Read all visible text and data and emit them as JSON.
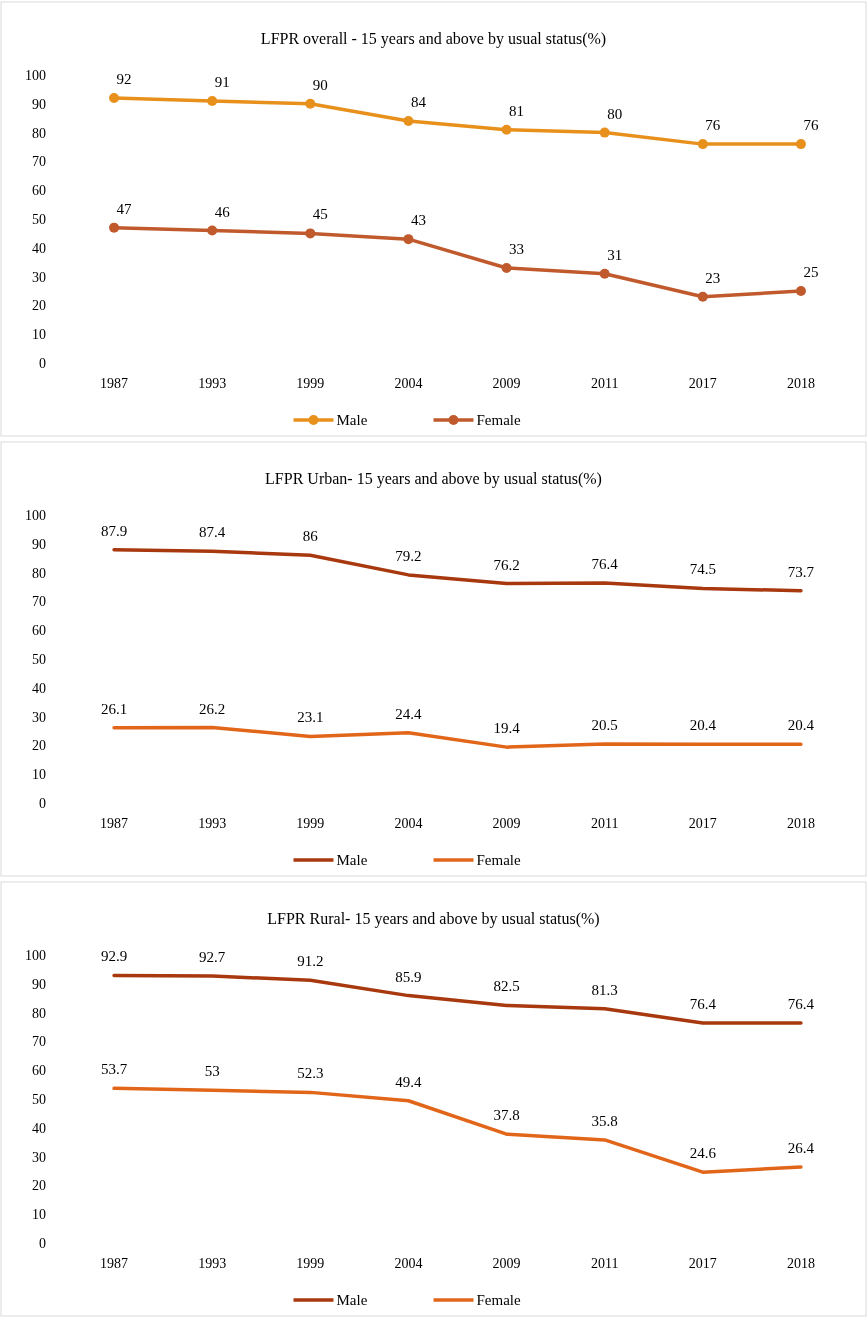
{
  "chart_data": [
    {
      "type": "line",
      "title": "LFPR overall - 15 years and above by usual status(%)",
      "categories": [
        "1987",
        "1993",
        "1999",
        "2004",
        "2009",
        "2011",
        "2017",
        "2018"
      ],
      "ylim": [
        0,
        100
      ],
      "yticks": [
        0,
        10,
        20,
        30,
        40,
        50,
        60,
        70,
        80,
        90,
        100
      ],
      "grid": false,
      "legend": "bottom",
      "marker": "circle",
      "data_labels": true,
      "series": [
        {
          "name": "Male",
          "color": "#e8901c",
          "values": [
            92,
            91,
            90,
            84,
            81,
            80,
            76,
            76
          ]
        },
        {
          "name": "Female",
          "color": "#c05a2c",
          "values": [
            47,
            46,
            45,
            43,
            33,
            31,
            23,
            25
          ]
        }
      ]
    },
    {
      "type": "line",
      "title": "LFPR Urban- 15 years and above by usual status(%)",
      "categories": [
        "1987",
        "1993",
        "1999",
        "2004",
        "2009",
        "2011",
        "2017",
        "2018"
      ],
      "ylim": [
        0,
        100
      ],
      "yticks": [
        0,
        10,
        20,
        30,
        40,
        50,
        60,
        70,
        80,
        90,
        100
      ],
      "grid": false,
      "legend": "bottom",
      "data_labels": true,
      "series": [
        {
          "name": "Male",
          "color": "#a8380e",
          "values": [
            87.9,
            87.4,
            86,
            79.2,
            76.2,
            76.4,
            74.5,
            73.7
          ]
        },
        {
          "name": "Female",
          "color": "#e2661a",
          "values": [
            26.1,
            26.2,
            23.1,
            24.4,
            19.4,
            20.5,
            20.4,
            20.4
          ]
        }
      ]
    },
    {
      "type": "line",
      "title": "LFPR Rural- 15 years and above by usual status(%)",
      "categories": [
        "1987",
        "1993",
        "1999",
        "2004",
        "2009",
        "2011",
        "2017",
        "2018"
      ],
      "ylim": [
        0,
        100
      ],
      "yticks": [
        0,
        10,
        20,
        30,
        40,
        50,
        60,
        70,
        80,
        90,
        100
      ],
      "grid": false,
      "legend": "bottom",
      "data_labels": true,
      "series": [
        {
          "name": "Male",
          "color": "#a8380e",
          "values": [
            92.9,
            92.7,
            91.2,
            85.9,
            82.5,
            81.3,
            76.4,
            76.4
          ]
        },
        {
          "name": "Female",
          "color": "#e2661a",
          "values": [
            53.7,
            53,
            52.3,
            49.4,
            37.8,
            35.8,
            24.6,
            26.4
          ]
        }
      ]
    }
  ]
}
